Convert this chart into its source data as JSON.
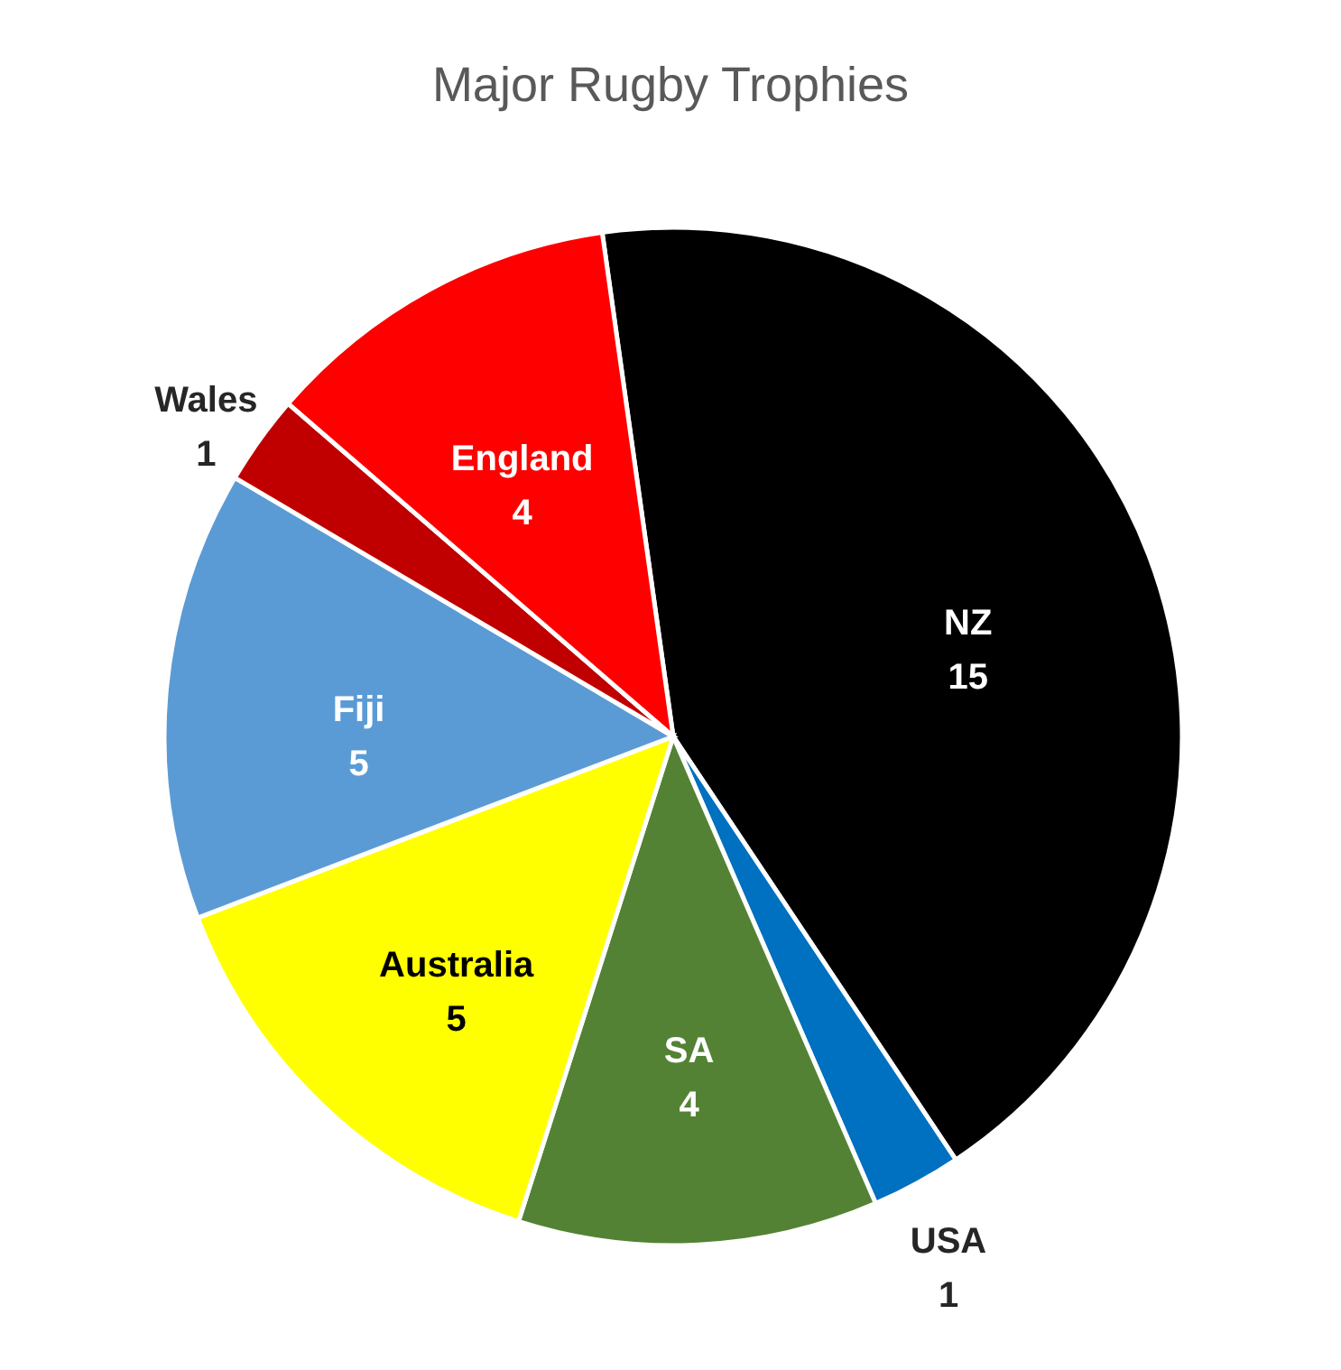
{
  "chart_data": {
    "type": "pie",
    "title": "Major Rugby Trophies",
    "categories": [
      "NZ",
      "USA",
      "SA",
      "Australia",
      "Fiji",
      "Wales",
      "England"
    ],
    "values": [
      15,
      1,
      4,
      5,
      5,
      1,
      4
    ],
    "colors": [
      "#000000",
      "#0070c0",
      "#548235",
      "#ffff00",
      "#5b9bd5",
      "#c00000",
      "#ff0000"
    ],
    "data_labels": true,
    "legend": false
  }
}
